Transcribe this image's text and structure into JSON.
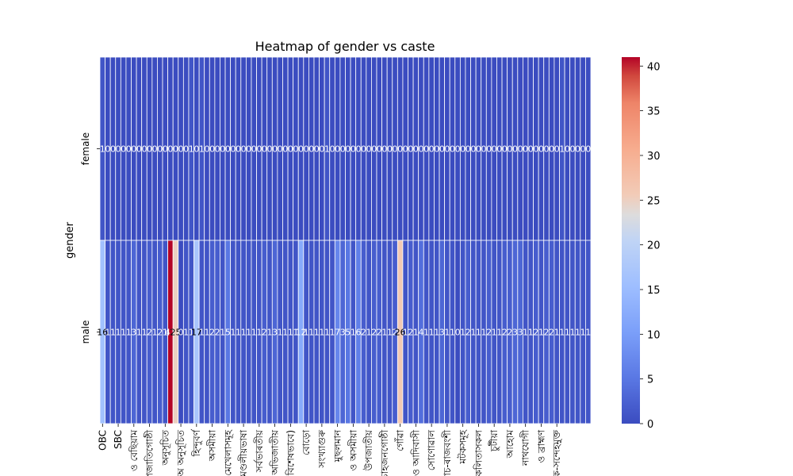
{
  "chart_data": {
    "type": "heatmap",
    "title": "Heatmap of gender vs caste",
    "xlabel": "",
    "ylabel": "gender",
    "rows": [
      "female",
      "male"
    ],
    "columns": [
      "OBC",
      "SBC",
      "",
      "",
      "",
      "",
      "",
      "",
      "",
      "",
      "",
      "",
      "",
      "",
      "",
      "",
      "",
      "",
      "",
      "",
      "",
      "",
      "",
      "",
      "",
      "",
      "",
      "",
      "",
      "",
      "",
      "",
      "",
      "",
      "",
      "",
      "",
      "",
      "",
      "",
      "",
      "",
      "",
      "",
      "",
      "",
      "",
      "",
      "",
      "",
      "",
      "",
      "",
      "",
      "",
      "",
      "",
      "",
      "",
      "",
      "",
      "",
      "",
      "",
      "",
      "",
      "",
      "",
      "",
      "",
      "",
      "",
      "",
      "",
      "",
      "",
      "",
      "",
      "",
      "",
      "",
      "",
      "",
      "",
      "",
      "",
      "",
      "",
      "",
      "",
      "",
      "",
      "",
      "",
      ""
    ],
    "values": [
      [
        1,
        0,
        0,
        0,
        0,
        0,
        0,
        0,
        0,
        0,
        0,
        0,
        0,
        0,
        0,
        0,
        0,
        1,
        0,
        1,
        0,
        0,
        0,
        0,
        0,
        0,
        0,
        0,
        0,
        0,
        0,
        0,
        0,
        0,
        0,
        0,
        0,
        0,
        0,
        0,
        0,
        0,
        0,
        1,
        0,
        0,
        0,
        0,
        0,
        0,
        0,
        0,
        0,
        0,
        0,
        0,
        0,
        0,
        0,
        0,
        0,
        0,
        0,
        0,
        0,
        0,
        0,
        0,
        0,
        0,
        0,
        0,
        0,
        0,
        0,
        0,
        0,
        0,
        0,
        0,
        0,
        0,
        0,
        0,
        0,
        0,
        0,
        0,
        1,
        0,
        0,
        0,
        0,
        0
      ],
      [
        16,
        1,
        1,
        1,
        1,
        1,
        3,
        1,
        1,
        2,
        1,
        2,
        1,
        41,
        25,
        0,
        1,
        1,
        17,
        1,
        1,
        2,
        2,
        1,
        5,
        1,
        1,
        1,
        1,
        1,
        1,
        2,
        1,
        3,
        1,
        1,
        1,
        1,
        12,
        1,
        1,
        1,
        1,
        1,
        1,
        7,
        3,
        5,
        1,
        6,
        2,
        1,
        2,
        2,
        1,
        1,
        2,
        26,
        1,
        2,
        1,
        4,
        1,
        1,
        1,
        3,
        1,
        1,
        0,
        1,
        2,
        1,
        1,
        1,
        2,
        1,
        1,
        2,
        2,
        3,
        3,
        1,
        1,
        2,
        1,
        2,
        2,
        1,
        1,
        1,
        1,
        1,
        1,
        1
      ]
    ],
    "colorbar": {
      "min": 0,
      "max": 41,
      "ticks": [
        0,
        5,
        10,
        15,
        20,
        25,
        30,
        35,
        40
      ]
    },
    "x_tick_labels": [
      "OBC",
      "SBC",
      "ও বেছিয়াম",
      "উপজাতিগোষ্ঠী",
      "অনুসূচিত",
      "অ অনুসূচিত",
      "হিন্দুবর্ণ",
      "অসমীয়া",
      "মেখেলাসমূহ",
      "পৰিমণ্ডলীয়ভাষা",
      "ও সৰ্বভাৰতীয়",
      "ও অভিজাতীয়",
      "(বিশেষভাবে)",
      "বোড়ো",
      "সংখ্যাগুৰু",
      "মুছলমান",
      "ও অসমীয়া",
      "উপজাতীয়",
      "চাহজনগোষ্ঠী",
      "গোঁৱা",
      "ও আদিবাসী",
      "সোণোৱাল",
      "কোচ-ৰাজবংশী",
      "মটকসমূহ",
      "কলিতাসকল",
      "চুটীয়া",
      "আহোম",
      "নাথযোগী",
      "ও ব্ৰাহ্মণ",
      "কে-সন্দেহমুক্ত"
    ],
    "colors": {
      "low": "#3b4cc0",
      "mid": "#dddddd",
      "high": "#b40426",
      "cell_border": "#ffffff"
    }
  }
}
